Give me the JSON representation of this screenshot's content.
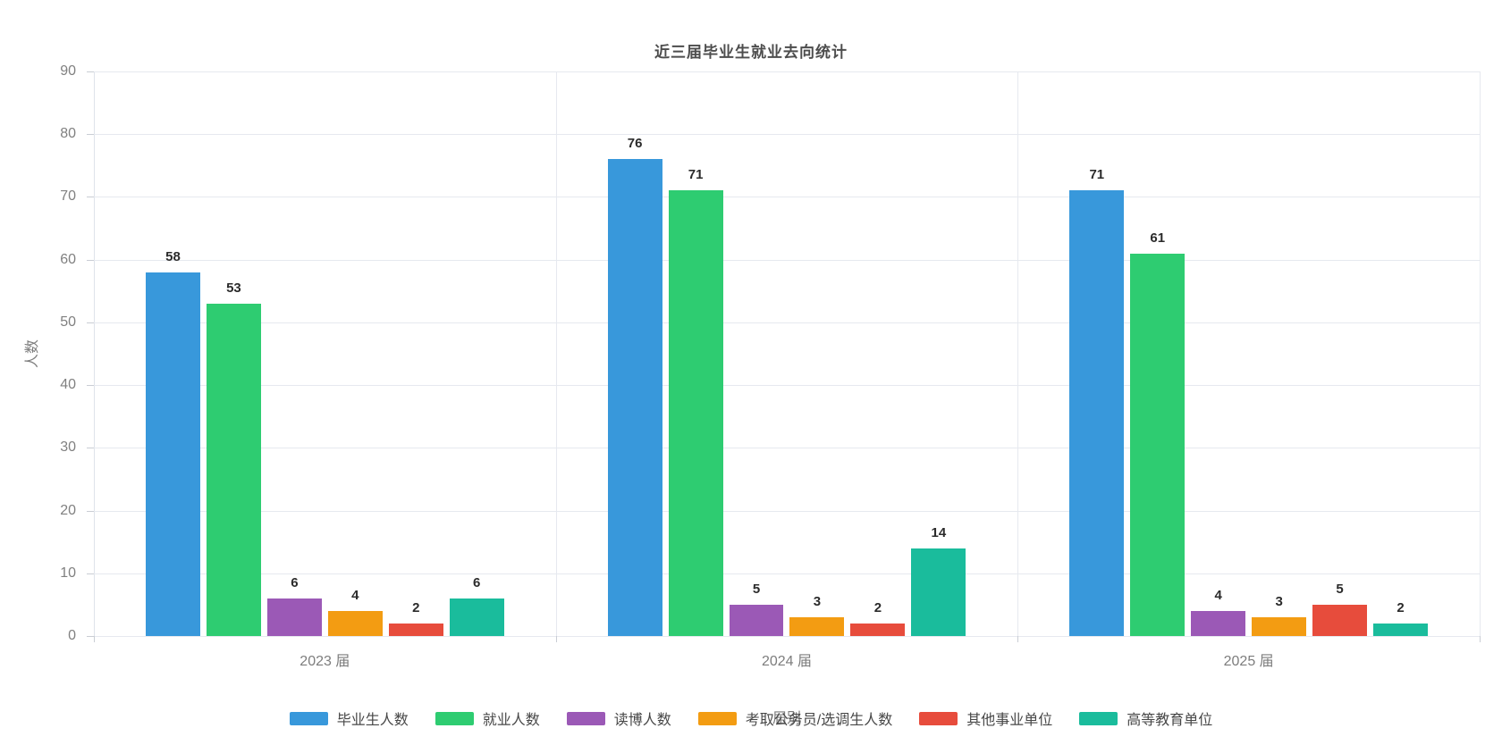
{
  "title": "近三届毕业生就业去向统计",
  "chart_data": {
    "type": "bar",
    "title": "近三届毕业生就业去向统计",
    "categories": [
      "2023 届",
      "2024 届",
      "2025 届"
    ],
    "series": [
      {
        "name": "毕业生人数",
        "color": "#3898DB",
        "values": [
          58,
          76,
          71
        ]
      },
      {
        "name": "就业人数",
        "color": "#2ECC71",
        "values": [
          53,
          71,
          61
        ]
      },
      {
        "name": "读博人数",
        "color": "#9B59B6",
        "values": [
          6,
          5,
          4
        ]
      },
      {
        "name": "考取公务员/选调生人数",
        "color": "#F39C12",
        "values": [
          4,
          3,
          3
        ]
      },
      {
        "name": "其他事业单位",
        "color": "#E74C3C",
        "values": [
          2,
          2,
          5
        ]
      },
      {
        "name": "高等教育单位",
        "color": "#1ABC9C",
        "values": [
          6,
          14,
          2
        ]
      }
    ],
    "xlabel": "届别",
    "ylabel": "人数",
    "ylim": [
      0,
      90
    ],
    "ytick_step": 10,
    "yticks": [
      0,
      10,
      20,
      30,
      40,
      50,
      60,
      70,
      80,
      90
    ],
    "grid": true,
    "legend_position": "bottom",
    "value_labels": true
  }
}
